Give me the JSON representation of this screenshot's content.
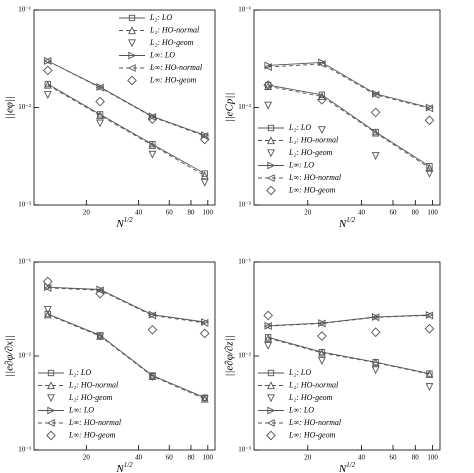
{
  "chart_data": [
    {
      "type": "line",
      "ylabel": "||eφ||",
      "xlabel": "N",
      "xlabel_sup": "1/2",
      "log_x": true,
      "log_y": true,
      "legend": "upper right",
      "x": [
        12,
        24,
        48,
        96
      ],
      "xlim": [
        10,
        110
      ],
      "xticks": [
        20,
        40,
        60,
        80,
        100
      ],
      "ylim": [
        0.001,
        0.1
      ],
      "yticks": [
        {
          "value": 0.001,
          "label": "10⁻³"
        },
        {
          "value": 0.01,
          "label": "10⁻²"
        },
        {
          "value": 0.1,
          "label": "10⁻¹"
        }
      ],
      "series": [
        {
          "name": "L₂: LO",
          "color": "#555555",
          "marker": "square",
          "line": "solid",
          "values": [
            0.0174,
            0.0085,
            0.0042,
            0.0021
          ]
        },
        {
          "name": "L₂: HO-normal",
          "color": "#555555",
          "marker": "tri-up",
          "line": "dashed",
          "values": [
            0.017,
            0.0083,
            0.0041,
            0.002
          ]
        },
        {
          "name": "L₂: HO-geom",
          "color": "#555555",
          "marker": "tri-down",
          "line": "none",
          "values": [
            0.0135,
            0.0069,
            0.0033,
            0.0017
          ]
        },
        {
          "name": "L∞: LO",
          "color": "#555555",
          "marker": "tri-right",
          "line": "solid",
          "values": [
            0.03,
            0.0162,
            0.0081,
            0.0052
          ]
        },
        {
          "name": "L∞: HO-normal",
          "color": "#555555",
          "marker": "tri-left",
          "line": "dashed",
          "values": [
            0.03,
            0.016,
            0.008,
            0.0051
          ]
        },
        {
          "name": "L∞: HO-geom",
          "color": "#555555",
          "marker": "diamond",
          "line": "none",
          "values": [
            0.024,
            0.0115,
            0.0076,
            0.0047
          ]
        }
      ]
    },
    {
      "type": "line",
      "ylabel": "||eCp||",
      "xlabel": "N",
      "xlabel_sup": "1/2",
      "log_x": true,
      "log_y": true,
      "legend": "lower left",
      "x": [
        12,
        24,
        48,
        96
      ],
      "xlim": [
        10,
        110
      ],
      "xticks": [
        20,
        40,
        60,
        80,
        100
      ],
      "ylim": [
        0.001,
        0.1
      ],
      "yticks": [
        {
          "value": 0.001,
          "label": "10⁻³"
        },
        {
          "value": 0.01,
          "label": "10⁻²"
        },
        {
          "value": 0.1,
          "label": "10⁻¹"
        }
      ],
      "series": [
        {
          "name": "L₂: LO",
          "color": "#555555",
          "marker": "square",
          "line": "solid",
          "values": [
            0.017,
            0.0135,
            0.0056,
            0.0025
          ]
        },
        {
          "name": "L₂: HO-normal",
          "color": "#555555",
          "marker": "tri-up",
          "line": "dashed",
          "values": [
            0.0165,
            0.013,
            0.0055,
            0.0024
          ]
        },
        {
          "name": "L₂: HO-geom",
          "color": "#555555",
          "marker": "tri-down",
          "line": "none",
          "values": [
            0.0105,
            0.0059,
            0.0032,
            0.0021
          ]
        },
        {
          "name": "L∞: LO",
          "color": "#555555",
          "marker": "tri-right",
          "line": "solid",
          "values": [
            0.027,
            0.029,
            0.0138,
            0.01
          ]
        },
        {
          "name": "L∞: HO-normal",
          "color": "#555555",
          "marker": "tri-left",
          "line": "dashed",
          "values": [
            0.026,
            0.028,
            0.0135,
            0.0098
          ]
        },
        {
          "name": "L∞: HO-geom",
          "color": "#555555",
          "marker": "diamond",
          "line": "none",
          "values": [
            0.017,
            0.012,
            0.0089,
            0.0074
          ]
        }
      ]
    },
    {
      "type": "line",
      "ylabel": "||e∂φ/∂x||",
      "xlabel": "N",
      "xlabel_sup": "1/2",
      "log_x": true,
      "log_y": true,
      "legend": "lower left",
      "x": [
        12,
        24,
        48,
        96
      ],
      "xlim": [
        10,
        110
      ],
      "xticks": [
        20,
        40,
        60,
        80,
        100
      ],
      "ylim": [
        0.001,
        0.1
      ],
      "yticks": [
        {
          "value": 0.001,
          "label": "10⁻³"
        },
        {
          "value": 0.01,
          "label": "10⁻²"
        },
        {
          "value": 0.1,
          "label": "10⁻¹"
        }
      ],
      "series": [
        {
          "name": "L₂: LO",
          "color": "#555555",
          "marker": "square",
          "line": "solid",
          "values": [
            0.028,
            0.0166,
            0.0062,
            0.0036
          ]
        },
        {
          "name": "L₂: HO-normal",
          "color": "#555555",
          "marker": "tri-up",
          "line": "dashed",
          "values": [
            0.0275,
            0.0163,
            0.0061,
            0.0035
          ]
        },
        {
          "name": "L₂: HO-geom",
          "color": "#555555",
          "marker": "tri-down",
          "line": "none",
          "values": [
            0.031,
            0.0162,
            0.006,
            0.0035
          ]
        },
        {
          "name": "L∞: LO",
          "color": "#555555",
          "marker": "tri-right",
          "line": "solid",
          "values": [
            0.054,
            0.051,
            0.0275,
            0.023
          ]
        },
        {
          "name": "L∞: HO-normal",
          "color": "#555555",
          "marker": "tri-left",
          "line": "dashed",
          "values": [
            0.053,
            0.05,
            0.027,
            0.0225
          ]
        },
        {
          "name": "L∞: HO-geom",
          "color": "#555555",
          "marker": "diamond",
          "line": "none",
          "values": [
            0.062,
            0.046,
            0.019,
            0.0174
          ]
        }
      ]
    },
    {
      "type": "line",
      "ylabel": "||e∂φ/∂z||",
      "xlabel": "N",
      "xlabel_sup": "1/2",
      "log_x": true,
      "log_y": true,
      "legend": "lower left",
      "x": [
        12,
        24,
        48,
        96
      ],
      "xlim": [
        10,
        110
      ],
      "xticks": [
        20,
        40,
        60,
        80,
        100
      ],
      "ylim": [
        0.001,
        0.1
      ],
      "yticks": [
        {
          "value": 0.001,
          "label": "10⁻³"
        },
        {
          "value": 0.01,
          "label": "10⁻²"
        },
        {
          "value": 0.1,
          "label": "10⁻¹"
        }
      ],
      "series": [
        {
          "name": "L₂: LO",
          "color": "#555555",
          "marker": "square",
          "line": "solid",
          "values": [
            0.0158,
            0.011,
            0.0086,
            0.0065
          ]
        },
        {
          "name": "L₂: HO-normal",
          "color": "#555555",
          "marker": "tri-up",
          "line": "dashed",
          "values": [
            0.0155,
            0.0108,
            0.0085,
            0.0064
          ]
        },
        {
          "name": "L₂: HO-geom",
          "color": "#555555",
          "marker": "tri-down",
          "line": "none",
          "values": [
            0.0129,
            0.0089,
            0.0071,
            0.0047
          ]
        },
        {
          "name": "L∞: LO",
          "color": "#555555",
          "marker": "tri-right",
          "line": "solid",
          "values": [
            0.021,
            0.0224,
            0.026,
            0.0273
          ]
        },
        {
          "name": "L∞: HO-normal",
          "color": "#555555",
          "marker": "tri-left",
          "line": "dashed",
          "values": [
            0.0208,
            0.0222,
            0.0258,
            0.027
          ]
        },
        {
          "name": "L∞: HO-geom",
          "color": "#555555",
          "marker": "diamond",
          "line": "none",
          "values": [
            0.027,
            0.0163,
            0.0179,
            0.0195
          ]
        }
      ]
    }
  ]
}
